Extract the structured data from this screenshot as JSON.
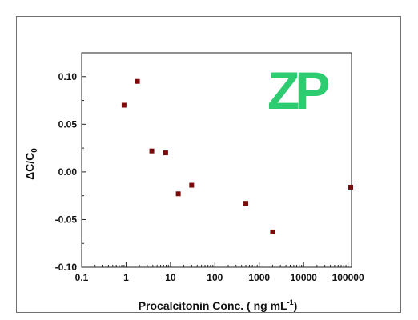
{
  "chart_data": {
    "type": "scatter",
    "title": "",
    "xlabel": "Procalcitonin Conc. ( ng mL",
    "xlabel_superscript": "-1",
    "xlabel_suffix": ")",
    "ylabel": "ΔC/C",
    "ylabel_subscript": "0",
    "x_scale": "log",
    "xlim": [
      0.1,
      120000
    ],
    "ylim": [
      -0.1,
      0.125
    ],
    "x_ticks": [
      {
        "value": 0.1,
        "label": "0.1"
      },
      {
        "value": 1,
        "label": "1"
      },
      {
        "value": 10,
        "label": "10"
      },
      {
        "value": 100,
        "label": "100"
      },
      {
        "value": 1000,
        "label": "1000"
      },
      {
        "value": 10000,
        "label": "10000"
      },
      {
        "value": 100000,
        "label": "100000"
      }
    ],
    "y_ticks": [
      {
        "value": 0.1,
        "label": "0.10"
      },
      {
        "value": 0.05,
        "label": "0.05"
      },
      {
        "value": 0.0,
        "label": "0.00"
      },
      {
        "value": -0.05,
        "label": "-0.05"
      },
      {
        "value": -0.1,
        "label": "-0.10"
      }
    ],
    "grid": false,
    "marker_color": "#7b0a0a",
    "series": [
      {
        "points": [
          {
            "x": 0.9,
            "y": 0.07
          },
          {
            "x": 1.8,
            "y": 0.095
          },
          {
            "x": 3.8,
            "y": 0.022
          },
          {
            "x": 7.8,
            "y": 0.02
          },
          {
            "x": 15,
            "y": -0.023
          },
          {
            "x": 30,
            "y": -0.014
          },
          {
            "x": 500,
            "y": -0.033
          },
          {
            "x": 2000,
            "y": -0.063
          },
          {
            "x": 120000,
            "y": -0.016
          }
        ]
      }
    ]
  },
  "logo": {
    "text": "ZP",
    "color": "#2ecc71"
  }
}
